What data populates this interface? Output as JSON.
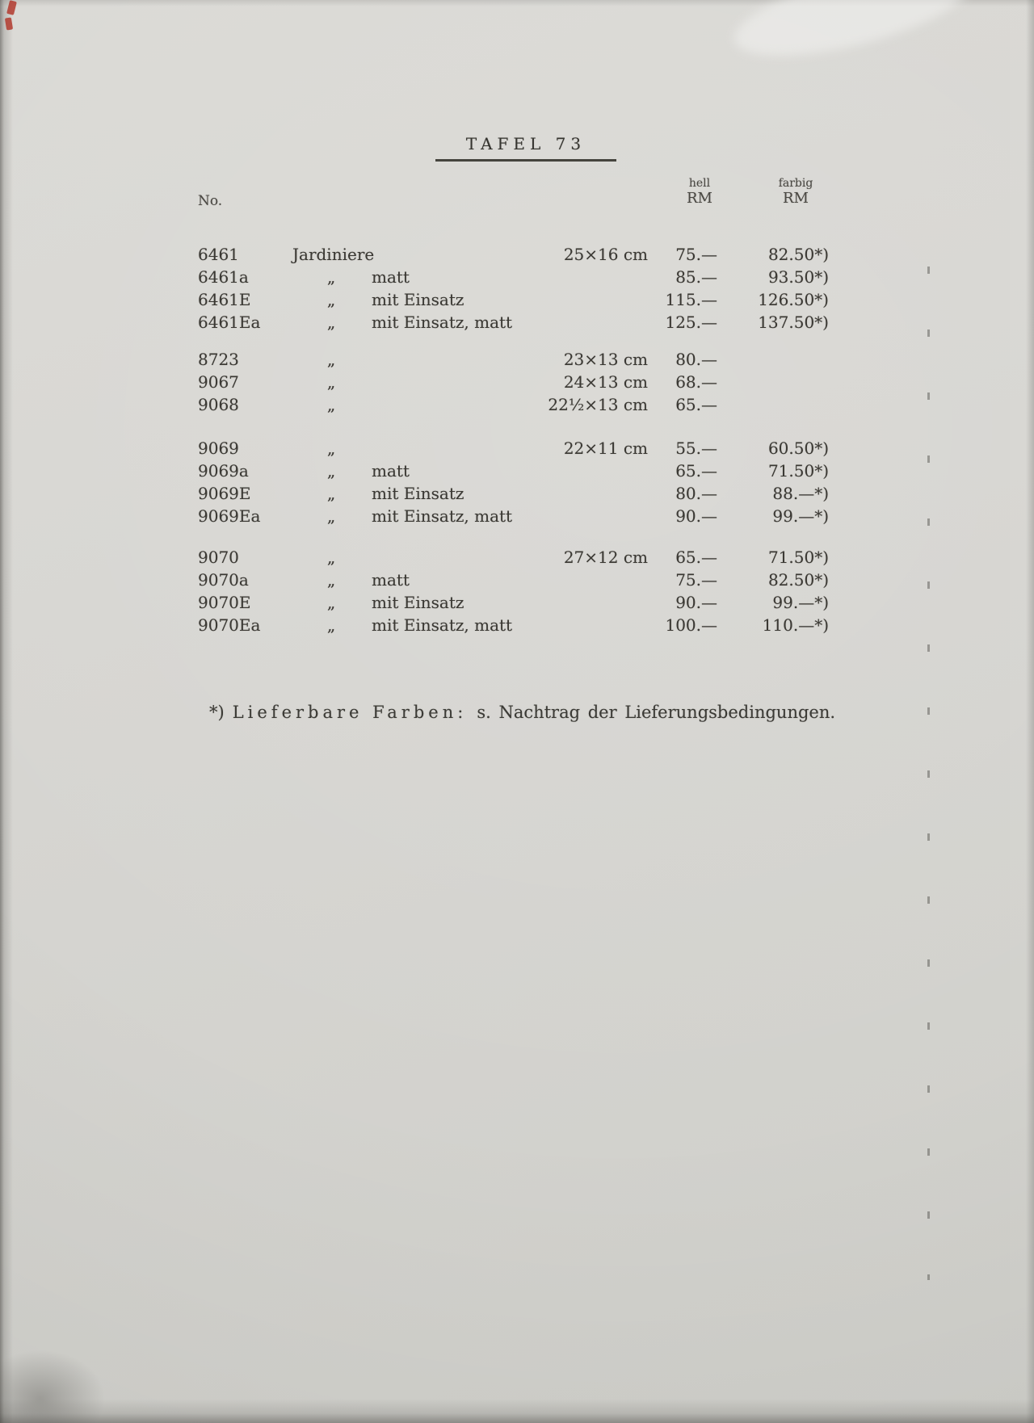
{
  "title": "TAFEL 73",
  "table": {
    "no_label": "No.",
    "hell_label": "hell",
    "hell_currency": "RM",
    "farbig_label": "farbig",
    "farbig_currency": "RM",
    "rows": [
      {
        "no": "6461",
        "name": "Jardiniere",
        "desc": "",
        "size": "25×16 cm",
        "hell": "75.—",
        "farbig": "82.50*)"
      },
      {
        "no": "6461a",
        "name": "„",
        "desc": "matt",
        "size": "",
        "hell": "85.—",
        "farbig": "93.50*)"
      },
      {
        "no": "6461E",
        "name": "„",
        "desc": "mit Einsatz",
        "size": "",
        "hell": "115.—",
        "farbig": "126.50*)"
      },
      {
        "no": "6461Ea",
        "name": "„",
        "desc": "mit Einsatz, matt",
        "size": "",
        "hell": "125.—",
        "farbig": "137.50*)"
      },
      {
        "no": "8723",
        "name": "„",
        "desc": "",
        "size": "23×13 cm",
        "hell": "80.—",
        "farbig": ""
      },
      {
        "no": "9067",
        "name": "„",
        "desc": "",
        "size": "24×13 cm",
        "hell": "68.—",
        "farbig": ""
      },
      {
        "no": "9068",
        "name": "„",
        "desc": "",
        "size": "22½×13 cm",
        "hell": "65.—",
        "farbig": ""
      },
      {
        "no": "9069",
        "name": "„",
        "desc": "",
        "size": "22×11 cm",
        "hell": "55.—",
        "farbig": "60.50*)"
      },
      {
        "no": "9069a",
        "name": "„",
        "desc": "matt",
        "size": "",
        "hell": "65.—",
        "farbig": "71.50*)"
      },
      {
        "no": "9069E",
        "name": "„",
        "desc": "mit Einsatz",
        "size": "",
        "hell": "80.—",
        "farbig": "88.—*)"
      },
      {
        "no": "9069Ea",
        "name": "„",
        "desc": "mit Einsatz, matt",
        "size": "",
        "hell": "90.—",
        "farbig": "99.—*)"
      },
      {
        "no": "9070",
        "name": "„",
        "desc": "",
        "size": "27×12 cm",
        "hell": "65.—",
        "farbig": "71.50*)"
      },
      {
        "no": "9070a",
        "name": "„",
        "desc": "matt",
        "size": "",
        "hell": "75.—",
        "farbig": "82.50*)"
      },
      {
        "no": "9070E",
        "name": "„",
        "desc": "mit Einsatz",
        "size": "",
        "hell": "90.—",
        "farbig": "99.—*)"
      },
      {
        "no": "9070Ea",
        "name": "„",
        "desc": "mit Einsatz, matt",
        "size": "",
        "hell": "100.—",
        "farbig": "110.—*)"
      }
    ]
  },
  "footnote": {
    "marker": "*)",
    "spaced": "Lieferbare Farben:",
    "rest": "s. Nachtrag der Lieferungsbedingungen."
  }
}
